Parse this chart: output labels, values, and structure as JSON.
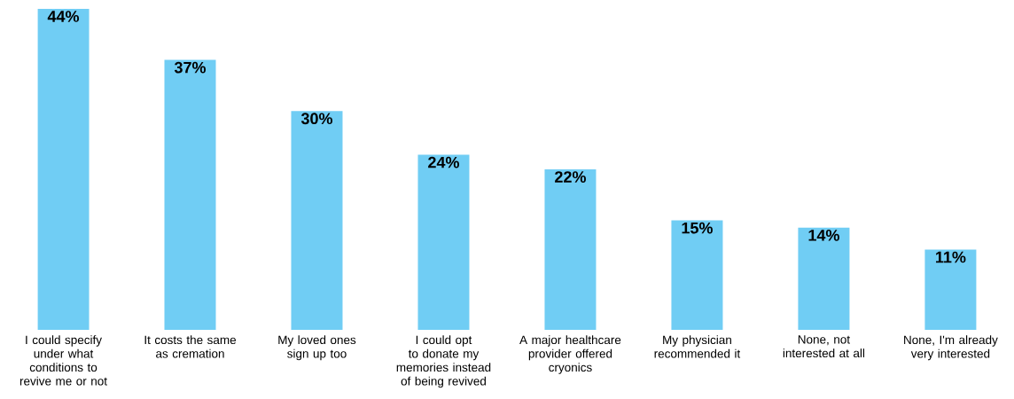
{
  "chart_data": {
    "type": "bar",
    "categories": [
      "I could specify under what conditions to revive me or not",
      "It costs the same as cremation",
      "My loved ones sign up too",
      "I could opt to donate my memories instead of being revived",
      "A major healthcare provider offered cryonics",
      "My physician recommended it",
      "None, not interested at all",
      "None, I'm already very interested"
    ],
    "values": [
      44,
      37,
      30,
      24,
      22,
      15,
      14,
      11
    ],
    "value_labels": [
      "44%",
      "37%",
      "30%",
      "24%",
      "22%",
      "15%",
      "14%",
      "11%"
    ],
    "color": "#70cdf4"
  }
}
